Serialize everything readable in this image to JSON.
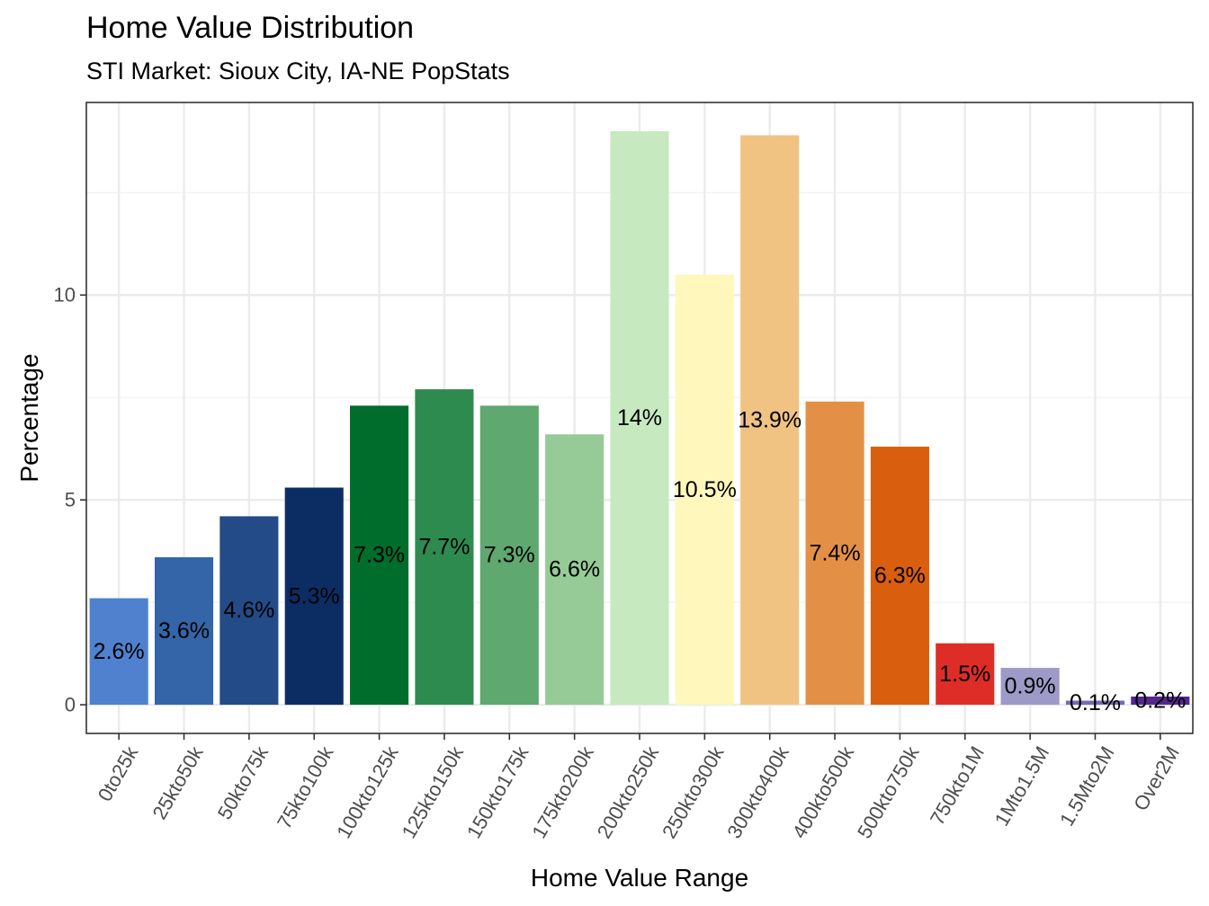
{
  "chart_data": {
    "type": "bar",
    "title": "Home Value Distribution",
    "subtitle": "STI Market: Sioux City, IA-NE PopStats",
    "xlabel": "Home Value Range",
    "ylabel": "Percentage",
    "categories": [
      "0to25k",
      "25kto50k",
      "50kto75k",
      "75kto100k",
      "100kto125k",
      "125kto150k",
      "150kto175k",
      "175kto200k",
      "200kto250k",
      "250kto300k",
      "300kto400k",
      "400kto500k",
      "500kto750k",
      "750kto1M",
      "1Mto1.5M",
      "1.5Mto2M",
      "Over2M"
    ],
    "values": [
      2.6,
      3.6,
      4.6,
      5.3,
      7.3,
      7.7,
      7.3,
      6.6,
      14.0,
      10.5,
      13.9,
      7.4,
      6.3,
      1.5,
      0.9,
      0.1,
      0.2
    ],
    "labels": [
      "2.6%",
      "3.6%",
      "4.6%",
      "5.3%",
      "7.3%",
      "7.7%",
      "7.3%",
      "6.6%",
      "14%",
      "10.5%",
      "13.9%",
      "7.4%",
      "6.3%",
      "1.5%",
      "0.9%",
      "0.1%",
      "0.2%"
    ],
    "colors": [
      "#4F81CF",
      "#3465A8",
      "#224B87",
      "#0C2D63",
      "#006D2C",
      "#2E8B50",
      "#5FA870",
      "#96CB97",
      "#C7E9C0",
      "#FFF7BC",
      "#F0C382",
      "#E39046",
      "#D95F0E",
      "#DE2D26",
      "#9E9AC8",
      "#756BB1",
      "#54278F"
    ],
    "y_ticks": [
      0,
      5,
      10
    ],
    "ylim": [
      -0.7,
      14.7
    ],
    "grid": true
  }
}
